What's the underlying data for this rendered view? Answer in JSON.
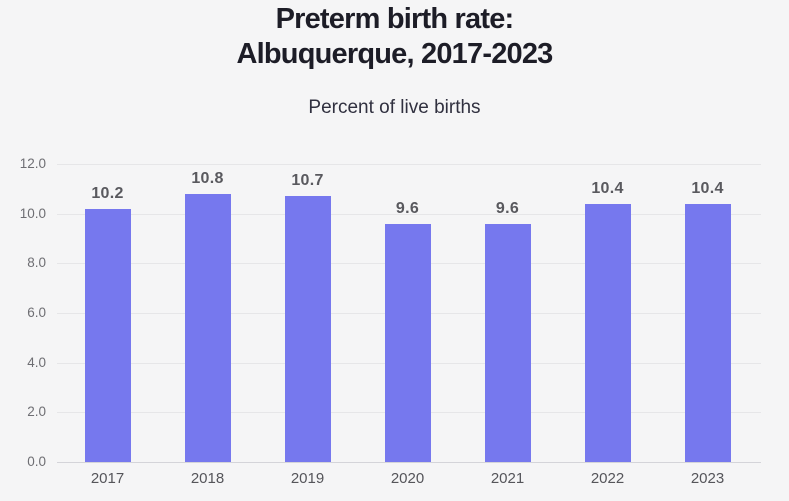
{
  "header": {
    "title_line1": "Preterm birth rate:",
    "title_line2": "Albuquerque, 2017-2023",
    "subtitle": "Percent of live births"
  },
  "chart_data": {
    "type": "bar",
    "title": "Preterm birth rate: Albuquerque, 2017-2023",
    "subtitle": "Percent of live births",
    "categories": [
      "2017",
      "2018",
      "2019",
      "2020",
      "2021",
      "2022",
      "2023"
    ],
    "values": [
      10.2,
      10.8,
      10.7,
      9.6,
      9.6,
      10.4,
      10.4
    ],
    "value_labels": [
      "10.2",
      "10.8",
      "10.7",
      "9.6",
      "9.6",
      "10.4",
      "10.4"
    ],
    "xlabel": "",
    "ylabel": "Percent of live births",
    "ylim": [
      0,
      12
    ],
    "ytick_step": 2,
    "ytick_labels": [
      "0.0",
      "2.0",
      "4.0",
      "6.0",
      "8.0",
      "10.0",
      "12.0"
    ],
    "grid": true,
    "legend_position": "none",
    "colors": {
      "bar": "#7678ee",
      "background": "#f5f5f6",
      "gridline": "#e6e6e8",
      "axis_line": "#d4d4d9",
      "value_label": "#59595e",
      "y_tick": "#6e6e73",
      "x_tick": "#55555a",
      "title": "#1d1d27",
      "subtitle": "#30303f"
    }
  }
}
